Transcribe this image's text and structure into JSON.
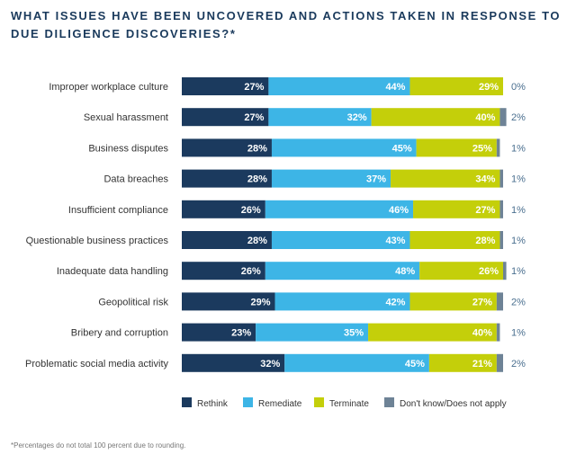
{
  "chart_data": {
    "type": "bar",
    "orientation": "horizontal",
    "stacked": true,
    "title": "WHAT ISSUES HAVE BEEN UNCOVERED AND ACTIONS TAKEN IN RESPONSE TO DUE DILIGENCE DISCOVERIES?*",
    "categories": [
      "Improper workplace culture",
      "Sexual harassment",
      "Business disputes",
      "Data breaches",
      "Insufficient compliance",
      "Questionable business practices",
      "Inadequate data handling",
      "Geopolitical risk",
      "Bribery and corruption",
      "Problematic social media activity"
    ],
    "series": [
      {
        "name": "Rethink",
        "color": "#1b3a5e",
        "label_color": "#ffffff",
        "values": [
          27,
          27,
          28,
          28,
          26,
          28,
          26,
          29,
          23,
          32
        ]
      },
      {
        "name": "Remediate",
        "color": "#3db5e6",
        "label_color": "#ffffff",
        "values": [
          44,
          32,
          45,
          37,
          46,
          43,
          48,
          42,
          35,
          45
        ]
      },
      {
        "name": "Terminate",
        "color": "#c4cf0a",
        "label_color": "#ffffff",
        "values": [
          29,
          40,
          25,
          34,
          27,
          28,
          26,
          27,
          40,
          21
        ]
      },
      {
        "name": "Don't know/Does not apply",
        "color": "#6e8396",
        "values": [
          0,
          2,
          1,
          1,
          1,
          1,
          1,
          2,
          1,
          2
        ]
      }
    ],
    "xlim": [
      0,
      100
    ],
    "grid": false,
    "legend": "bottom",
    "footnote": "*Percentages do not total 100 percent due to rounding."
  }
}
